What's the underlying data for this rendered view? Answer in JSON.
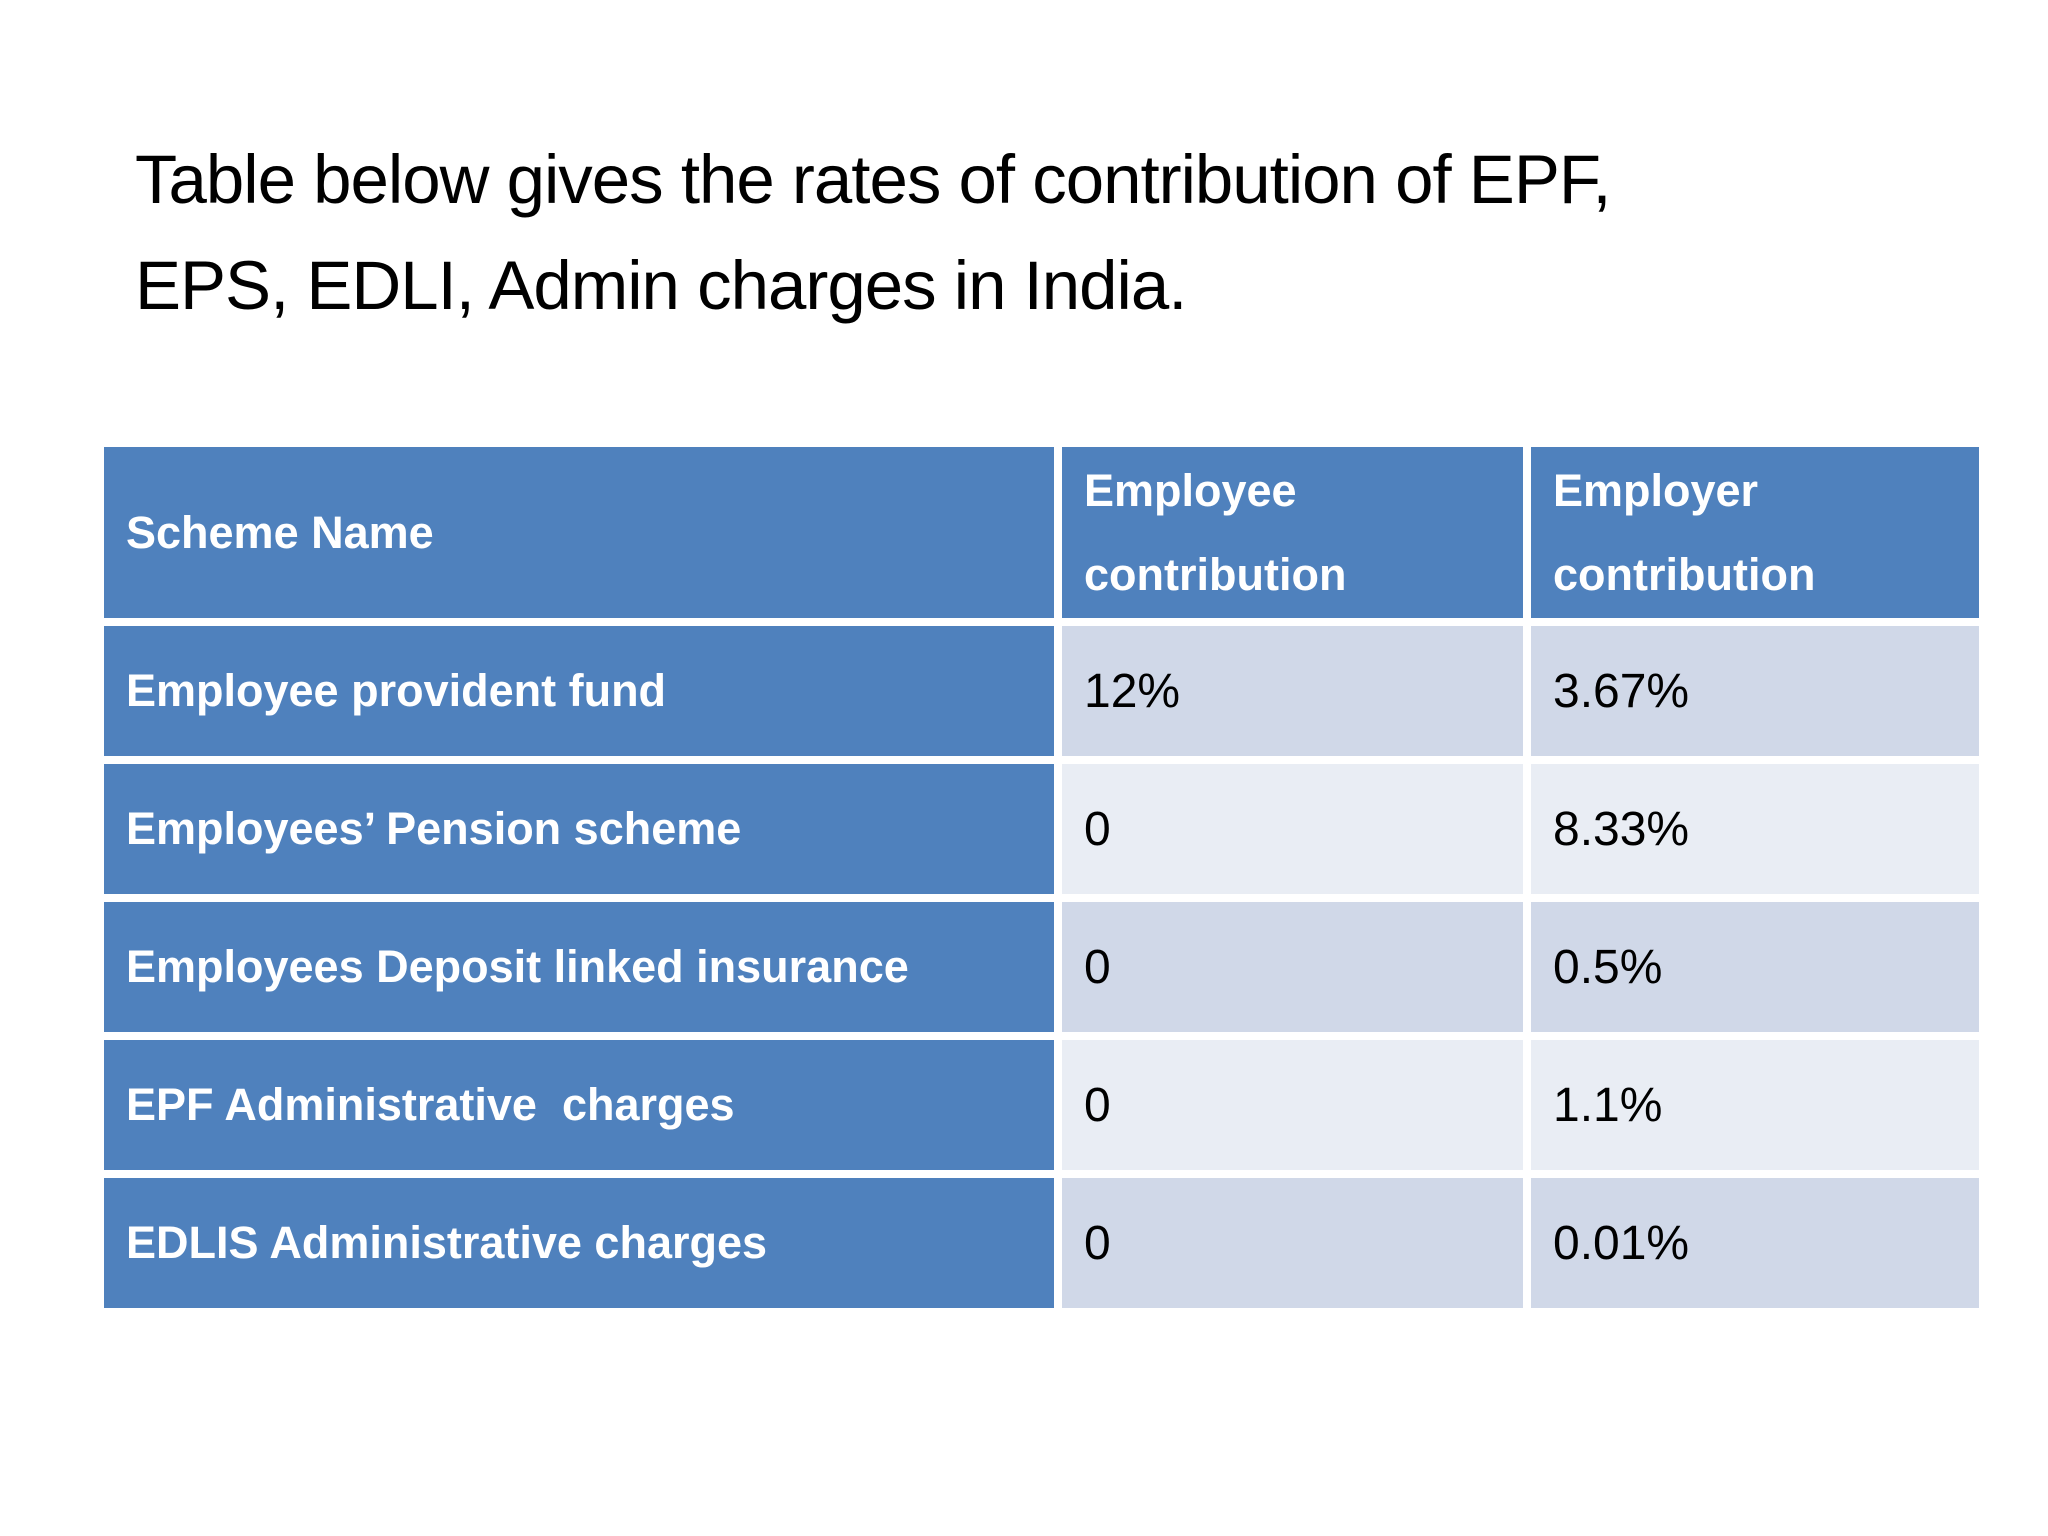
{
  "slide": {
    "background": "#FFFFFF"
  },
  "title": {
    "line1": "Table below gives the rates of contribution of EPF,",
    "line2": "EPS, EDLI, Admin charges in India."
  },
  "table": {
    "header": {
      "scheme": "Scheme Name",
      "employee_line1": "Employee",
      "employee_line2": "contribution",
      "employer_line1": "Employer",
      "employer_line2": "contribution"
    },
    "rows": [
      {
        "scheme": "Employee provident fund",
        "employee": "12%",
        "employer": "3.67%"
      },
      {
        "scheme": "Employees’ Pension scheme",
        "employee": "0",
        "employer": "8.33%"
      },
      {
        "scheme": "Employees Deposit linked insurance",
        "employee": "0",
        "employer": "0.5%"
      },
      {
        "scheme": "EPF Administrative  charges",
        "employee": "0",
        "employer": "1.1%"
      },
      {
        "scheme": "EDLIS Administrative charges",
        "employee": "0",
        "employer": "0.01%"
      }
    ],
    "colors": {
      "header_bg": "#4F81BD",
      "band_odd_bg": "#D0D8E8",
      "band_even_bg": "#E9EDF4",
      "header_text": "#FFFFFF",
      "value_text": "#000000",
      "divider": "#FFFFFF"
    }
  }
}
